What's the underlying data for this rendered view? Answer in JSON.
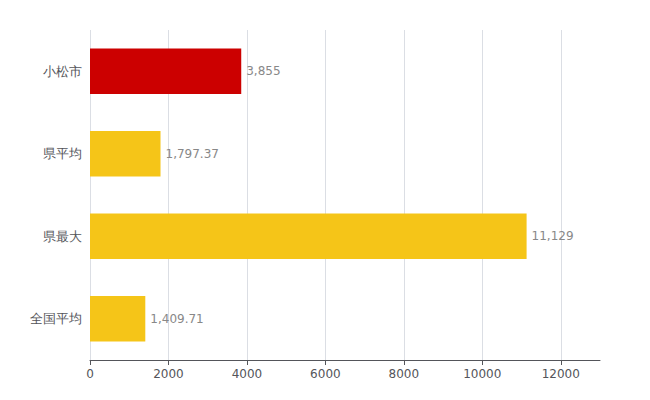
{
  "chart_data": {
    "type": "bar",
    "orientation": "horizontal",
    "categories": [
      "小松市",
      "県平均",
      "県最大",
      "全国平均"
    ],
    "values": [
      3855,
      1797.37,
      11129,
      1409.71
    ],
    "colors": [
      "#cc0000",
      "#f5c518",
      "#f5c518",
      "#f5c518"
    ],
    "data_labels": true,
    "value_labels": [
      "3,855",
      "1,797.37",
      "11,129",
      "1,409.71"
    ],
    "xlim": [
      0,
      13000
    ],
    "xticks": [
      0,
      2000,
      4000,
      6000,
      8000,
      10000,
      12000
    ],
    "grid": true
  }
}
